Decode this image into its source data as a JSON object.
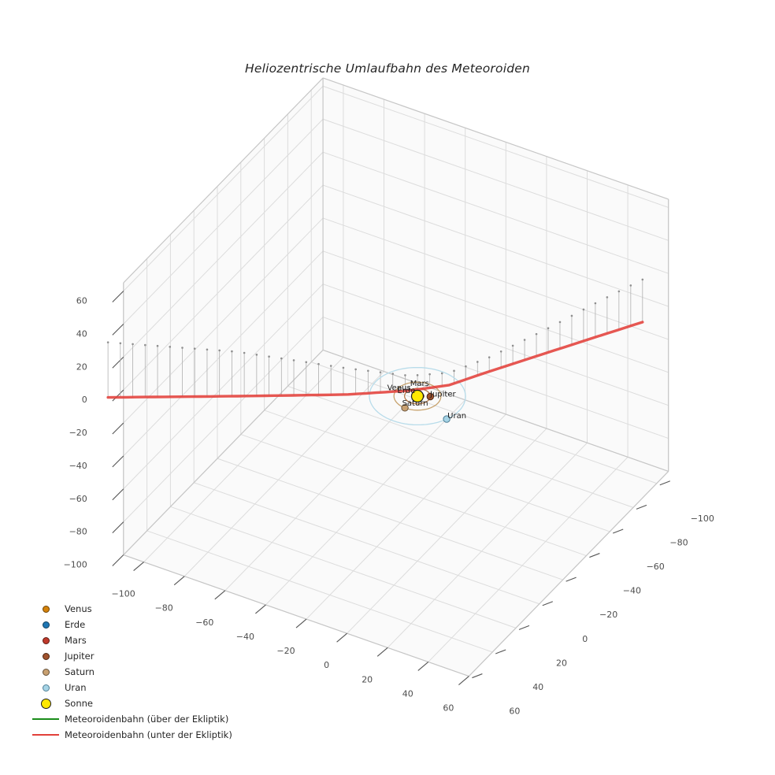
{
  "title": "Heliozentrische Umlaufbahn des Meteoroiden",
  "chart_data": {
    "type": "line",
    "projection_note": "3D matplotlib-style axes, view approx elev=30 azim=-60",
    "axes": {
      "x": {
        "ticks": [
          -100,
          -80,
          -60,
          -40,
          -20,
          0,
          20,
          40,
          60
        ],
        "lim": [
          -110,
          60
        ]
      },
      "y": {
        "ticks": [
          -100,
          -80,
          -60,
          -40,
          -20,
          0,
          20,
          40,
          60
        ],
        "lim": [
          -110,
          60
        ]
      },
      "z": {
        "ticks": [
          -100,
          -80,
          -60,
          -40,
          -20,
          0,
          20,
          40,
          60
        ],
        "lim": [
          -100,
          65
        ]
      },
      "grid": true,
      "grid_color": "#dcdcdc",
      "pane_color": "#fafafa",
      "edge_color": "#c6c6c6",
      "tick_color": "#4d4d4d",
      "tick_fontsize": 11
    },
    "sun": {
      "name": "Sonne",
      "pos": [
        0,
        0,
        0
      ],
      "radius_px": 7.5,
      "fill": "#ffe800",
      "edge": "#1a1a1a"
    },
    "planets": [
      {
        "name": "Venus",
        "orbit_radius": 0.75,
        "pos": [
          0.55,
          0.5
        ],
        "fill": "#d4820a",
        "edge": "#6e4305",
        "orbit_color": "#d9a05a",
        "marker_px": 3.5,
        "label_offset": [
          -24,
          -9
        ]
      },
      {
        "name": "Erde",
        "orbit_radius": 1.05,
        "pos": [
          -0.85,
          0.6
        ],
        "fill": "#1f77b4",
        "edge": "#10405f",
        "orbit_color": "#7aa7cc",
        "marker_px": 3.5,
        "label_offset": [
          -11,
          -4
        ]
      },
      {
        "name": "Mars",
        "orbit_radius": 1.6,
        "pos": [
          1.35,
          -0.85
        ],
        "fill": "#c0392b",
        "edge": "#5f1c13",
        "orbit_color": "#cc8a7a",
        "marker_px": 3.5,
        "label_offset": [
          -2,
          -13
        ]
      },
      {
        "name": "Jupiter",
        "orbit_radius": 5.5,
        "pos": [
          4.85,
          -2.55
        ],
        "fill": "#a0522d",
        "edge": "#4e2713",
        "orbit_color": "#b57a4a",
        "marker_px": 4.2,
        "label_offset": [
          16,
          0
        ]
      },
      {
        "name": "Saturn",
        "orbit_radius": 10.0,
        "pos": [
          -0.42,
          9.95
        ],
        "fill": "#c8a070",
        "edge": "#64503a",
        "orbit_color": "#c8a36e",
        "marker_px": 4.2,
        "label_offset": [
          13,
          -3
        ]
      },
      {
        "name": "Uran",
        "orbit_radius": 20.5,
        "pos": [
          18.9,
          7.8
        ],
        "fill": "#a6d4e6",
        "edge": "#4f7f96",
        "orbit_color": "#b8dcea",
        "marker_px": 4.2,
        "label_offset": [
          13,
          -1
        ]
      }
    ],
    "trajectory": {
      "name_above": "Meteoroidenbahn (über der Ekliptik)",
      "name_below": "Meteoroidenbahn (unter der Ekliptik)",
      "color_above": "#1a8c1a",
      "color_below": "#e2403a",
      "points": [
        [
          -132.7,
          33.9,
          -33.4
        ],
        [
          -82.3,
          11.8,
          -27.0
        ],
        [
          -36.0,
          -1.9,
          -16.0
        ],
        [
          -10.2,
          -10.9,
          -9.0
        ],
        [
          3.2,
          -21.3,
          -7.5
        ],
        [
          12.3,
          -39.2,
          -8.5
        ],
        [
          24.3,
          -72.1,
          -15.0
        ],
        [
          32.6,
          -97.8,
          -21.0
        ],
        [
          40.9,
          -121.0,
          -25.8
        ]
      ],
      "stems": {
        "count": 45,
        "line_color": "#b0b0b0",
        "dot_color": "#8f8f8f",
        "note": "vertical drop lines from trajectory up to ecliptic plane z=0"
      }
    },
    "legend": [
      {
        "kind": "marker",
        "label": "Venus",
        "fill": "#d4820a",
        "edge": "#6e4305",
        "size": 9
      },
      {
        "kind": "marker",
        "label": "Erde",
        "fill": "#1f77b4",
        "edge": "#10405f",
        "size": 9
      },
      {
        "kind": "marker",
        "label": "Mars",
        "fill": "#c0392b",
        "edge": "#5f1c13",
        "size": 9
      },
      {
        "kind": "marker",
        "label": "Jupiter",
        "fill": "#a0522d",
        "edge": "#4e2713",
        "size": 9
      },
      {
        "kind": "marker",
        "label": "Saturn",
        "fill": "#c8a070",
        "edge": "#64503a",
        "size": 9
      },
      {
        "kind": "marker",
        "label": "Uran",
        "fill": "#a6d4e6",
        "edge": "#4f7f96",
        "size": 9
      },
      {
        "kind": "marker",
        "label": "Sonne",
        "fill": "#ffe800",
        "edge": "#1a1a1a",
        "size": 13
      },
      {
        "kind": "line",
        "label": "Meteoroidenbahn (über der Ekliptik)",
        "color": "#1a8c1a"
      },
      {
        "kind": "line",
        "label": "Meteoroidenbahn (unter der Ekliptik)",
        "color": "#e2403a"
      }
    ],
    "planet_label_color": "#1a1a1a",
    "planet_label_fontsize": 10
  }
}
